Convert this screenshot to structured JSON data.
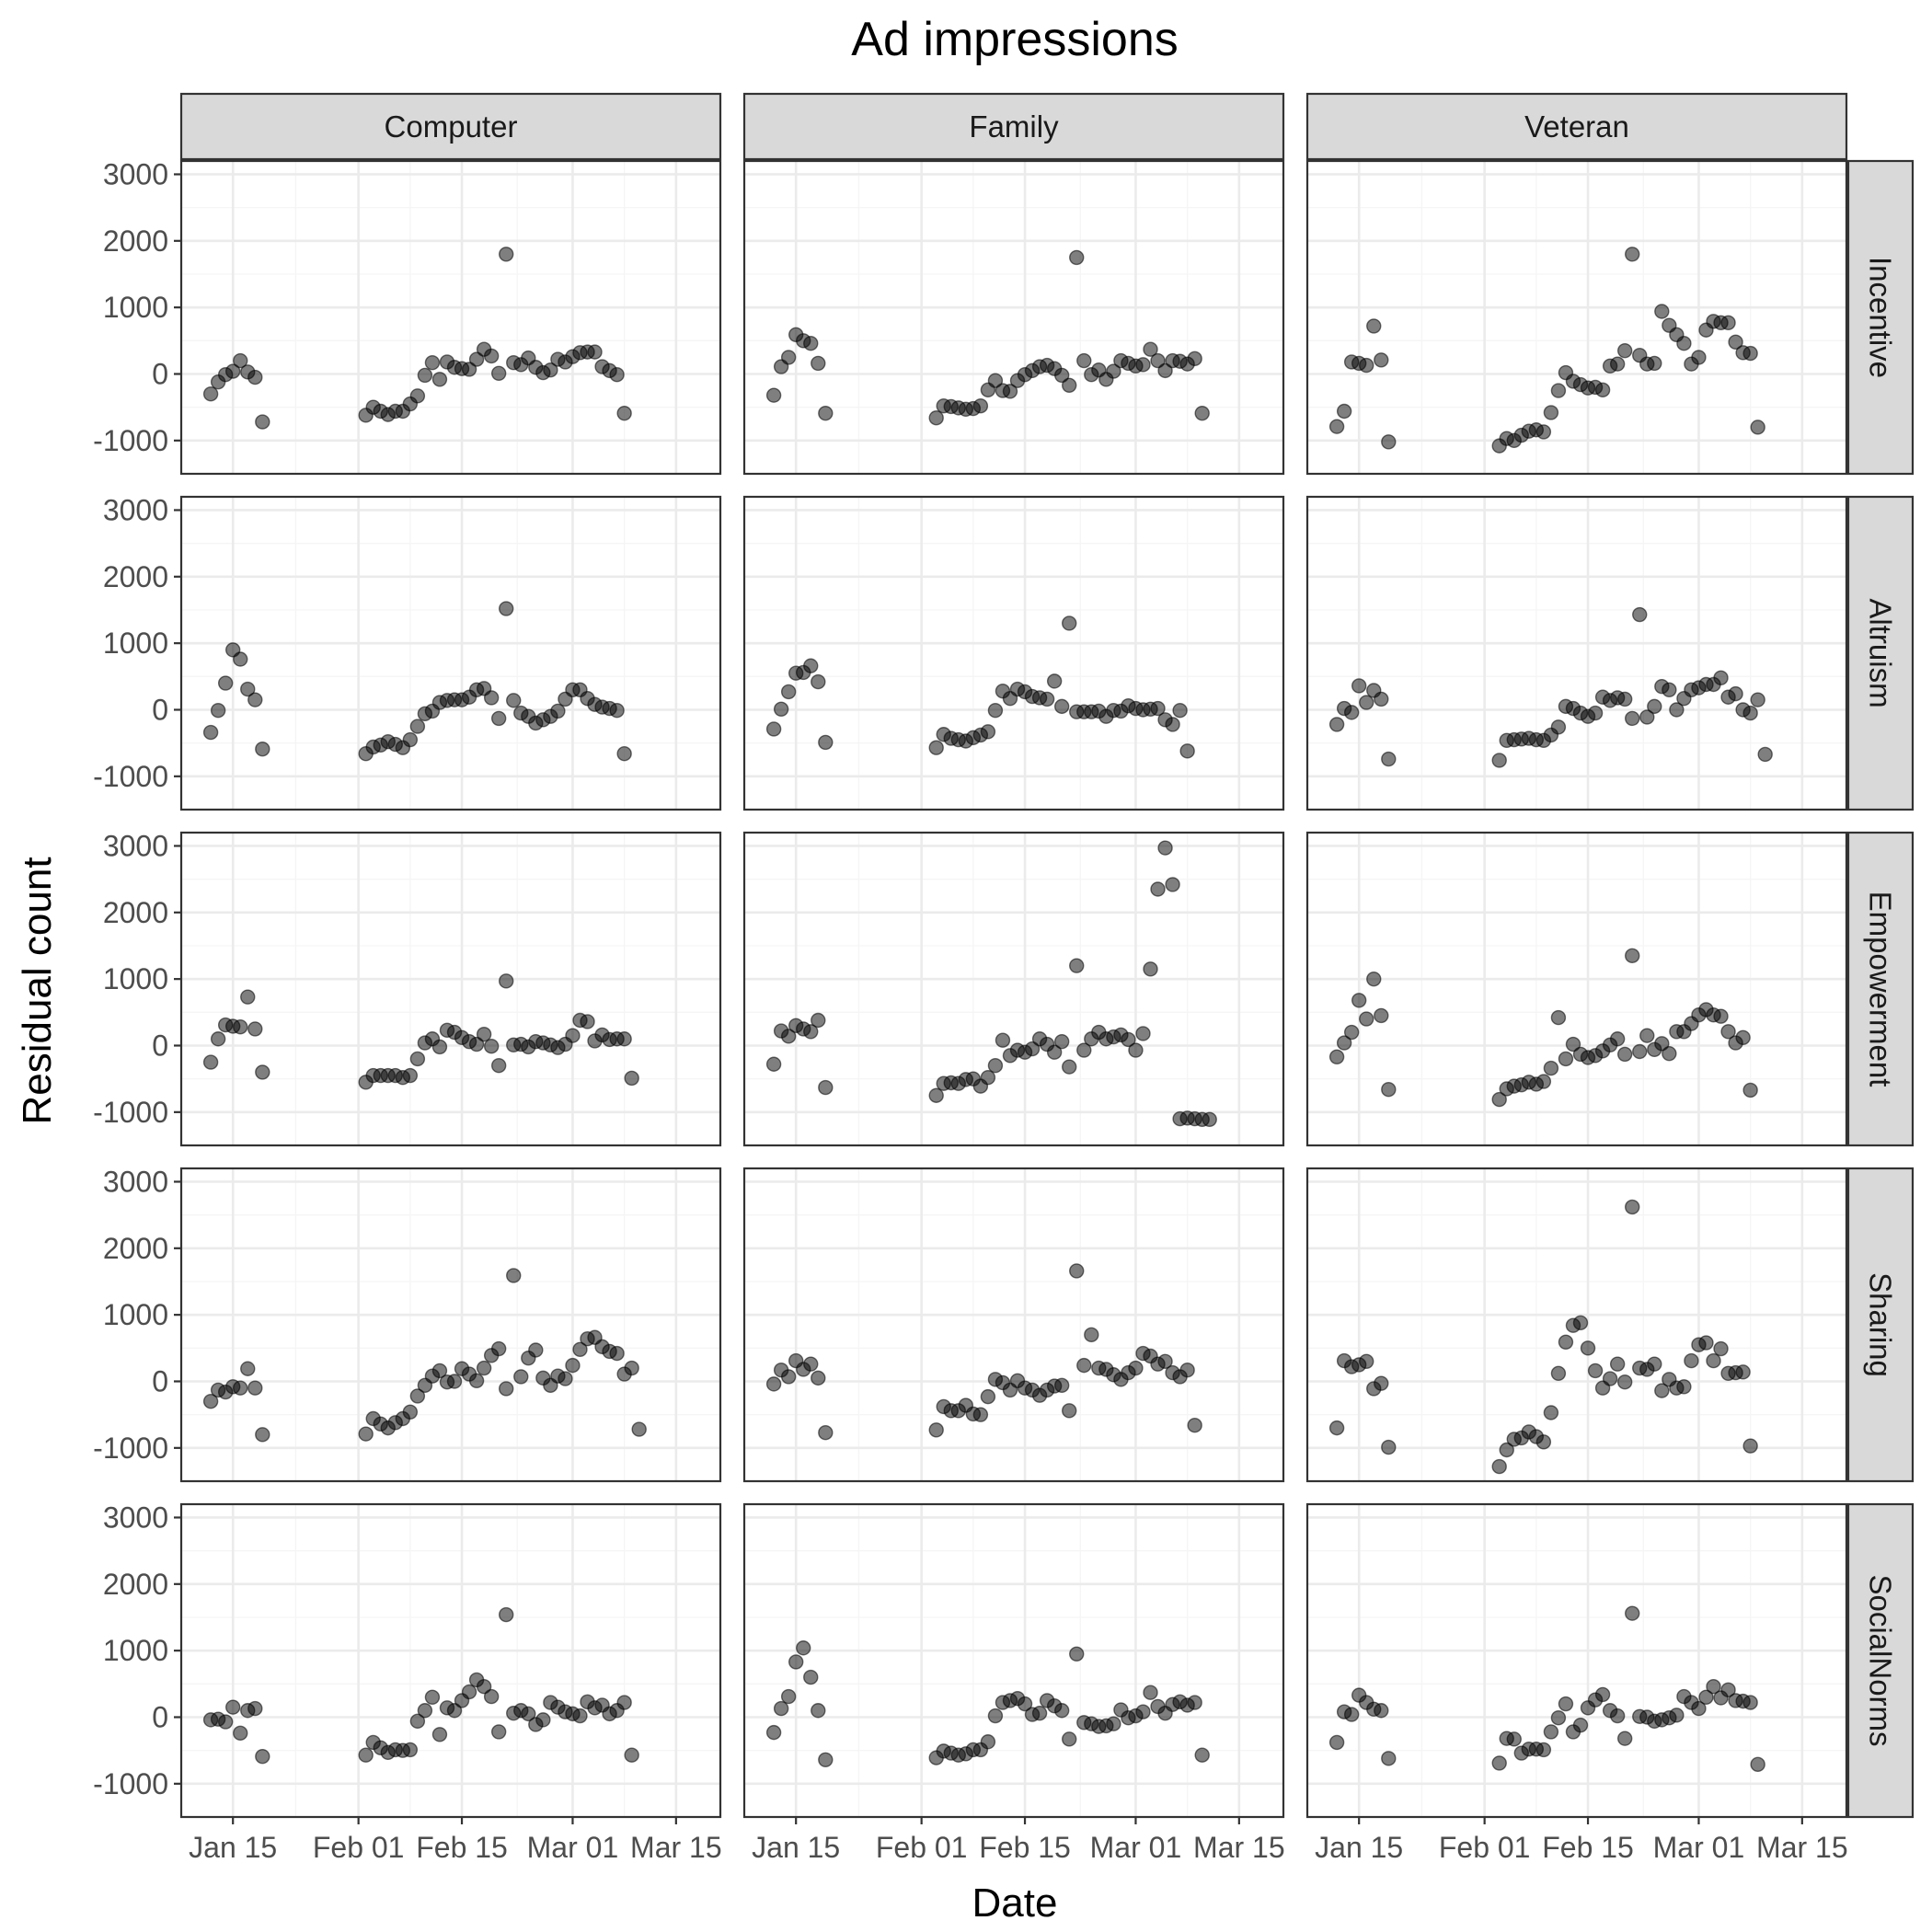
{
  "chart_data": {
    "type": "scatter",
    "title": "Ad impressions",
    "xlabel": "Date",
    "ylabel": "Residual count",
    "columns": [
      "Computer",
      "Family",
      "Veteran"
    ],
    "rows": [
      "Incentive",
      "Altruism",
      "Empowerment",
      "Sharing",
      "SocialNorms"
    ],
    "x_ticks": [
      {
        "date": "2020-01-15",
        "label": "Jan 15"
      },
      {
        "date": "2020-02-01",
        "label": "Feb 01"
      },
      {
        "date": "2020-02-15",
        "label": "Feb 15"
      },
      {
        "date": "2020-03-01",
        "label": "Mar 01"
      },
      {
        "date": "2020-03-15",
        "label": "Mar 15"
      }
    ],
    "xlim": [
      "2020-01-08",
      "2020-03-21"
    ],
    "y_ticks": [
      -1000,
      0,
      1000,
      2000,
      3000
    ],
    "ylim": [
      -1500,
      3200
    ],
    "grid": true,
    "point_dates": {
      "Computer": [
        "2020-01-12",
        "2020-01-13",
        "2020-01-14",
        "2020-01-15",
        "2020-01-16",
        "2020-01-17",
        "2020-01-18",
        "2020-01-19",
        "2020-02-02",
        "2020-02-03",
        "2020-02-04",
        "2020-02-05",
        "2020-02-06",
        "2020-02-07",
        "2020-02-08",
        "2020-02-09",
        "2020-02-10",
        "2020-02-11",
        "2020-02-12",
        "2020-02-13",
        "2020-02-14",
        "2020-02-15",
        "2020-02-16",
        "2020-02-17",
        "2020-02-18",
        "2020-02-19",
        "2020-02-20",
        "2020-02-21",
        "2020-02-22",
        "2020-02-23",
        "2020-02-24",
        "2020-02-25",
        "2020-02-26",
        "2020-02-27",
        "2020-02-28",
        "2020-02-29",
        "2020-03-01",
        "2020-03-02",
        "2020-03-03",
        "2020-03-04",
        "2020-03-05",
        "2020-03-06",
        "2020-03-07",
        "2020-03-08",
        "2020-03-09",
        "2020-03-10",
        "2020-03-11"
      ],
      "Family": [
        "2020-01-12",
        "2020-01-13",
        "2020-01-14",
        "2020-01-15",
        "2020-01-16",
        "2020-01-17",
        "2020-01-18",
        "2020-01-19",
        "2020-02-03",
        "2020-02-04",
        "2020-02-05",
        "2020-02-06",
        "2020-02-07",
        "2020-02-08",
        "2020-02-09",
        "2020-02-10",
        "2020-02-11",
        "2020-02-12",
        "2020-02-13",
        "2020-02-14",
        "2020-02-15",
        "2020-02-16",
        "2020-02-17",
        "2020-02-18",
        "2020-02-19",
        "2020-02-20",
        "2020-02-21",
        "2020-02-22",
        "2020-02-23",
        "2020-02-24",
        "2020-02-25",
        "2020-02-26",
        "2020-02-27",
        "2020-02-28",
        "2020-02-29",
        "2020-03-01",
        "2020-03-02",
        "2020-03-03",
        "2020-03-04",
        "2020-03-05",
        "2020-03-06",
        "2020-03-07",
        "2020-03-08",
        "2020-03-09",
        "2020-03-10",
        "2020-03-11"
      ],
      "Veteran": [
        "2020-01-12",
        "2020-01-13",
        "2020-01-14",
        "2020-01-15",
        "2020-01-16",
        "2020-01-17",
        "2020-01-18",
        "2020-01-19",
        "2020-02-03",
        "2020-02-04",
        "2020-02-05",
        "2020-02-06",
        "2020-02-07",
        "2020-02-08",
        "2020-02-09",
        "2020-02-10",
        "2020-02-11",
        "2020-02-12",
        "2020-02-13",
        "2020-02-14",
        "2020-02-15",
        "2020-02-16",
        "2020-02-17",
        "2020-02-18",
        "2020-02-19",
        "2020-02-20",
        "2020-02-21",
        "2020-02-22",
        "2020-02-23",
        "2020-02-24",
        "2020-02-25",
        "2020-02-26",
        "2020-02-27",
        "2020-02-28",
        "2020-02-29",
        "2020-03-01",
        "2020-03-02",
        "2020-03-03",
        "2020-03-04",
        "2020-03-05",
        "2020-03-06",
        "2020-03-07",
        "2020-03-08",
        "2020-03-09",
        "2020-03-10",
        "2020-03-11"
      ]
    },
    "family_empowerment_extra_dates": [
      "2020-03-12",
      "2020-03-13",
      "2020-03-14",
      "2020-03-15",
      "2020-03-16",
      "2020-03-17",
      "2020-03-18"
    ],
    "series": [
      {
        "column": "Computer",
        "row": "Incentive",
        "values": [
          -300,
          -120,
          -10,
          40,
          200,
          30,
          -50,
          -720,
          -620,
          -500,
          -560,
          -610,
          -560,
          -560,
          -450,
          -330,
          -20,
          170,
          -80,
          180,
          100,
          80,
          70,
          220,
          370,
          270,
          10,
          1800,
          170,
          140,
          240,
          100,
          20,
          60,
          220,
          180,
          260,
          320,
          330,
          330,
          110,
          50,
          -10,
          -590
        ]
      },
      {
        "column": "Computer",
        "row": "Altruism",
        "values": [
          -340,
          -10,
          400,
          900,
          760,
          310,
          150,
          -590,
          -660,
          -560,
          -530,
          -480,
          -520,
          -570,
          -450,
          -250,
          -60,
          -20,
          110,
          140,
          150,
          150,
          190,
          300,
          320,
          180,
          -130,
          1520,
          140,
          -50,
          -100,
          -200,
          -150,
          -100,
          -20,
          160,
          300,
          300,
          170,
          80,
          40,
          20,
          -10,
          -660
        ]
      },
      {
        "column": "Computer",
        "row": "Empowerment",
        "values": [
          -250,
          100,
          310,
          290,
          280,
          730,
          250,
          -400,
          -550,
          -450,
          -450,
          -450,
          -450,
          -480,
          -450,
          -200,
          40,
          100,
          -20,
          230,
          200,
          120,
          60,
          20,
          170,
          -10,
          -300,
          970,
          10,
          20,
          -20,
          60,
          40,
          10,
          -30,
          20,
          150,
          380,
          360,
          70,
          160,
          90,
          100,
          100,
          -490
        ]
      },
      {
        "column": "Computer",
        "row": "Sharing",
        "values": [
          -300,
          -130,
          -160,
          -80,
          -100,
          190,
          -100,
          -800,
          -790,
          -560,
          -640,
          -700,
          -620,
          -560,
          -460,
          -220,
          -60,
          80,
          160,
          -10,
          0,
          190,
          110,
          10,
          200,
          390,
          490,
          -110,
          1590,
          70,
          350,
          470,
          50,
          -60,
          80,
          40,
          240,
          480,
          640,
          660,
          520,
          450,
          420,
          110,
          200,
          -720
        ]
      },
      {
        "column": "Computer",
        "row": "SocialNorms",
        "values": [
          -40,
          -30,
          -70,
          150,
          -240,
          100,
          130,
          -590,
          -570,
          -380,
          -460,
          -530,
          -490,
          -500,
          -490,
          -60,
          100,
          300,
          -260,
          140,
          100,
          250,
          380,
          560,
          460,
          310,
          -220,
          1540,
          60,
          100,
          50,
          -110,
          -40,
          220,
          150,
          80,
          50,
          20,
          230,
          140,
          180,
          50,
          100,
          220,
          -570
        ]
      },
      {
        "column": "Family",
        "row": "Incentive",
        "values": [
          -320,
          110,
          250,
          590,
          500,
          460,
          160,
          -590,
          -660,
          -480,
          -490,
          -510,
          -530,
          -520,
          -480,
          -240,
          -100,
          -250,
          -260,
          -100,
          -10,
          50,
          110,
          130,
          80,
          -20,
          -170,
          1750,
          200,
          -10,
          60,
          -80,
          40,
          200,
          160,
          120,
          140,
          370,
          200,
          50,
          200,
          190,
          150,
          230,
          -590
        ]
      },
      {
        "column": "Family",
        "row": "Altruism",
        "values": [
          -290,
          10,
          270,
          550,
          560,
          660,
          420,
          -490,
          -570,
          -370,
          -430,
          -450,
          -470,
          -420,
          -380,
          -330,
          -10,
          280,
          170,
          310,
          270,
          200,
          180,
          160,
          430,
          50,
          1300,
          -30,
          -30,
          -30,
          -20,
          -100,
          -10,
          -20,
          60,
          20,
          0,
          10,
          20,
          -150,
          -220,
          -10,
          -620
        ]
      },
      {
        "column": "Family",
        "row": "Empowerment",
        "values": [
          -280,
          220,
          140,
          300,
          250,
          210,
          380,
          -630,
          -750,
          -570,
          -560,
          -570,
          -510,
          -500,
          -610,
          -480,
          -300,
          80,
          -150,
          -70,
          -100,
          -50,
          100,
          20,
          -100,
          60,
          -320,
          1200,
          -70,
          100,
          200,
          100,
          130,
          160,
          90,
          -70,
          180,
          1150,
          2350,
          2970,
          2420,
          -1100,
          -1090,
          -1100,
          -1110,
          -1110
        ]
      },
      {
        "column": "Family",
        "row": "Sharing",
        "values": [
          -40,
          170,
          70,
          310,
          180,
          260,
          50,
          -770,
          -730,
          -380,
          -440,
          -440,
          -360,
          -490,
          -500,
          -230,
          30,
          -20,
          -130,
          10,
          -100,
          -130,
          -210,
          -130,
          -70,
          -60,
          -440,
          1660,
          240,
          700,
          200,
          180,
          100,
          30,
          130,
          200,
          420,
          380,
          260,
          300,
          130,
          70,
          170,
          -660
        ]
      },
      {
        "column": "Family",
        "row": "SocialNorms",
        "values": [
          -230,
          130,
          310,
          830,
          1040,
          600,
          100,
          -640,
          -610,
          -510,
          -540,
          -570,
          -550,
          -490,
          -490,
          -370,
          20,
          220,
          250,
          280,
          200,
          40,
          60,
          250,
          170,
          100,
          -330,
          950,
          -80,
          -100,
          -140,
          -130,
          -100,
          110,
          -10,
          20,
          80,
          370,
          160,
          60,
          190,
          230,
          180,
          220,
          -570
        ]
      },
      {
        "column": "Veteran",
        "row": "Incentive",
        "values": [
          -790,
          -560,
          180,
          160,
          130,
          720,
          210,
          -1020,
          -1080,
          -970,
          -1000,
          -920,
          -860,
          -840,
          -870,
          -580,
          -250,
          20,
          -110,
          -160,
          -210,
          -200,
          -240,
          120,
          150,
          350,
          1800,
          280,
          150,
          160,
          940,
          730,
          590,
          460,
          150,
          250,
          660,
          790,
          770,
          770,
          480,
          320,
          310,
          -800
        ]
      },
      {
        "column": "Veteran",
        "row": "Altruism",
        "values": [
          -220,
          20,
          -40,
          360,
          110,
          290,
          160,
          -740,
          -760,
          -460,
          -450,
          -440,
          -430,
          -450,
          -460,
          -380,
          -260,
          50,
          20,
          -50,
          -100,
          -50,
          190,
          140,
          180,
          160,
          -130,
          1430,
          -110,
          50,
          350,
          300,
          0,
          170,
          300,
          330,
          380,
          380,
          480,
          190,
          240,
          0,
          -50,
          150,
          -670
        ]
      },
      {
        "column": "Veteran",
        "row": "Empowerment",
        "values": [
          -170,
          40,
          200,
          680,
          400,
          1000,
          450,
          -660,
          -810,
          -650,
          -610,
          -590,
          -550,
          -580,
          -540,
          -340,
          420,
          -200,
          20,
          -130,
          -180,
          -150,
          -80,
          10,
          100,
          -130,
          1350,
          -90,
          150,
          -60,
          30,
          -120,
          210,
          210,
          330,
          460,
          540,
          460,
          440,
          210,
          40,
          120,
          -670
        ]
      },
      {
        "column": "Veteran",
        "row": "Sharing",
        "values": [
          -700,
          310,
          220,
          250,
          300,
          -110,
          -30,
          -990,
          -1280,
          -1030,
          -870,
          -850,
          -760,
          -830,
          -910,
          -470,
          120,
          590,
          840,
          880,
          500,
          160,
          -100,
          40,
          260,
          -10,
          2620,
          200,
          180,
          260,
          -140,
          30,
          -100,
          -80,
          310,
          550,
          580,
          310,
          490,
          120,
          130,
          140,
          -970
        ]
      },
      {
        "column": "Veteran",
        "row": "SocialNorms",
        "values": [
          -380,
          80,
          40,
          330,
          220,
          120,
          100,
          -620,
          -690,
          -320,
          -330,
          -540,
          -480,
          -480,
          -490,
          -220,
          -10,
          200,
          -220,
          -120,
          140,
          260,
          340,
          100,
          20,
          -320,
          1560,
          10,
          0,
          -60,
          -40,
          -10,
          30,
          310,
          220,
          130,
          300,
          460,
          290,
          410,
          250,
          240,
          220,
          -710
        ]
      }
    ]
  }
}
